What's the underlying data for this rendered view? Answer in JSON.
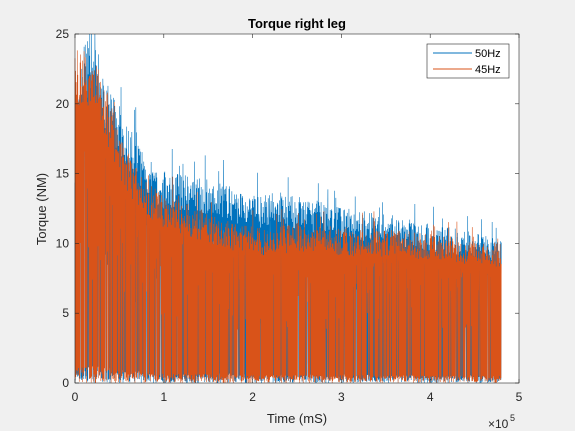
{
  "chart_data": {
    "type": "line",
    "title": "Torque right leg",
    "xlabel": "Time (mS)",
    "ylabel": "Torque (NM)",
    "x_exponent_label": "×10",
    "x_exponent_power": "5",
    "xlim": [
      0,
      5
    ],
    "ylim": [
      0,
      25
    ],
    "x_ticks": [
      0,
      1,
      2,
      3,
      4,
      5
    ],
    "y_ticks": [
      0,
      5,
      10,
      15,
      20,
      25
    ],
    "grid": false,
    "legend_position": "top-right",
    "x_multiplier": 100000,
    "series": [
      {
        "name": "50Hz",
        "color": "#0072BD",
        "envelope_x": [
          0,
          0.1,
          0.2,
          0.3,
          0.4,
          0.5,
          0.6,
          0.7,
          0.8,
          0.9,
          1.0,
          1.2,
          1.4,
          1.6,
          1.8,
          2.0,
          2.2,
          2.5,
          2.8,
          3.0,
          3.3,
          3.6,
          3.9,
          4.2,
          4.5,
          4.8
        ],
        "envelope_top": [
          17.5,
          24.5,
          24.5,
          23.0,
          21.0,
          19.5,
          18.5,
          17.5,
          16.5,
          15.5,
          15.2,
          15.0,
          14.8,
          14.5,
          14.0,
          13.5,
          13.5,
          13.4,
          13.0,
          12.7,
          12.3,
          12.0,
          11.5,
          11.2,
          10.8,
          10.3
        ]
      },
      {
        "name": "45Hz",
        "color": "#D95319",
        "envelope_x": [
          0,
          0.1,
          0.2,
          0.3,
          0.4,
          0.5,
          0.6,
          0.7,
          0.8,
          0.9,
          1.0,
          1.2,
          1.4,
          1.6,
          1.8,
          2.0,
          2.2,
          2.5,
          2.8,
          3.0,
          3.3,
          3.6,
          3.9,
          4.2,
          4.5,
          4.8
        ],
        "envelope_top": [
          24.5,
          24.0,
          24.0,
          22.5,
          20.0,
          18.0,
          16.5,
          15.5,
          14.5,
          14.0,
          13.5,
          13.0,
          12.5,
          12.0,
          11.5,
          11.2,
          11.0,
          11.5,
          11.3,
          11.0,
          11.0,
          11.0,
          10.8,
          10.6,
          10.2,
          10.0
        ]
      }
    ]
  }
}
